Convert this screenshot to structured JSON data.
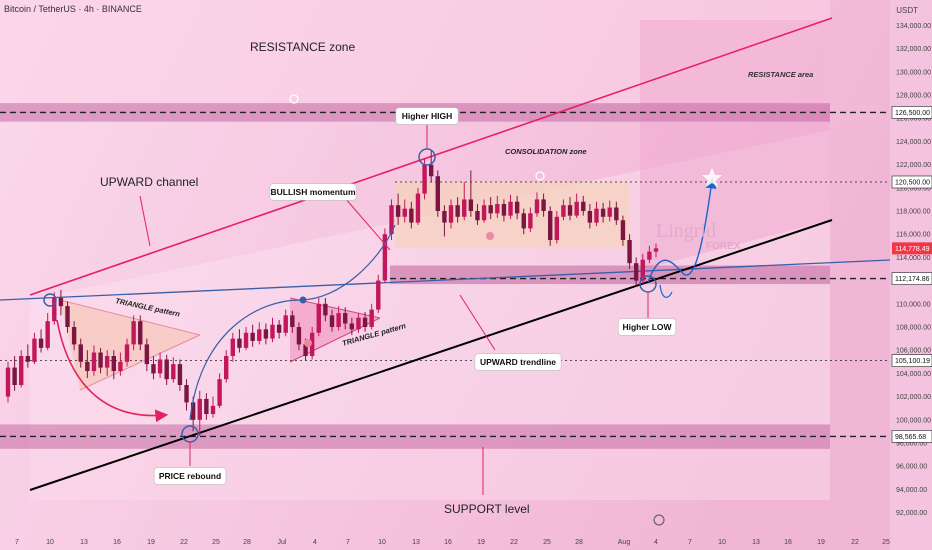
{
  "header": {
    "title": "Bitcoin / TetherUS · 4h · BINANCE",
    "currency": "USDT"
  },
  "chart_data": {
    "type": "candlestick",
    "y_scale": {
      "min": 90500,
      "max": 135500,
      "ticks": [
        92000,
        94000,
        96000,
        98000,
        100000,
        102000,
        104000,
        106000,
        108000,
        110000,
        112000,
        114000,
        116000,
        118000,
        120000,
        122000,
        124000,
        126000,
        128000,
        130000,
        132000,
        134000
      ]
    },
    "y_tick_labels": [
      "92,000.00",
      "94,000.00",
      "96,000.00",
      "98,000.00",
      "100,000.00",
      "102,000.00",
      "104,000.00",
      "106,000.00",
      "108,000.00",
      "110,000.00",
      "112,000.00",
      "114,000.00",
      "116,000.00",
      "118,000.00",
      "120,000.00",
      "122,000.00",
      "124,000.00",
      "126,000.00",
      "128,000.00",
      "130,000.00",
      "132,000.00",
      "134,000.00"
    ],
    "x_labels": [
      "7",
      "10",
      "13",
      "16",
      "19",
      "22",
      "25",
      "28",
      "Jul",
      "4",
      "7",
      "10",
      "13",
      "16",
      "19",
      "22",
      "25",
      "28",
      "Aug",
      "4",
      "7",
      "10",
      "13",
      "16",
      "19",
      "22",
      "25"
    ],
    "price_levels": [
      {
        "value": 126500,
        "label": "126,500.00",
        "color": "#222222",
        "style": "dashed",
        "highlight": false
      },
      {
        "value": 120500,
        "label": "120,500.00",
        "color": "#222222",
        "style": "dotted",
        "highlight": false
      },
      {
        "value": 114778.49,
        "label": "114,778.49",
        "color": "#f23645",
        "style": "none",
        "highlight": true
      },
      {
        "value": 112174.86,
        "label": "112,174.86",
        "color": "#222222",
        "style": "dashed",
        "highlight": false
      },
      {
        "value": 105100.19,
        "label": "105,100.19",
        "color": "#222222",
        "style": "dotted",
        "highlight": false
      },
      {
        "value": 98565.68,
        "label": "98,565.68",
        "color": "#222222",
        "style": "dashed",
        "highlight": false
      }
    ],
    "candles": [
      {
        "o": 102000,
        "c": 104500,
        "h": 105000,
        "l": 101500
      },
      {
        "o": 104500,
        "c": 103000,
        "h": 105500,
        "l": 102500
      },
      {
        "o": 103000,
        "c": 105500,
        "h": 106000,
        "l": 102800
      },
      {
        "o": 105500,
        "c": 105000,
        "h": 106500,
        "l": 104500
      },
      {
        "o": 105000,
        "c": 107000,
        "h": 107500,
        "l": 104800
      },
      {
        "o": 107000,
        "c": 106200,
        "h": 107800,
        "l": 105800
      },
      {
        "o": 106200,
        "c": 108500,
        "h": 109200,
        "l": 106000
      },
      {
        "o": 108500,
        "c": 110500,
        "h": 111000,
        "l": 108200
      },
      {
        "o": 110500,
        "c": 109800,
        "h": 111200,
        "l": 109000
      },
      {
        "o": 109800,
        "c": 108000,
        "h": 110200,
        "l": 107500
      },
      {
        "o": 108000,
        "c": 106500,
        "h": 108500,
        "l": 106000
      },
      {
        "o": 106500,
        "c": 105000,
        "h": 107000,
        "l": 104500
      },
      {
        "o": 105000,
        "c": 104200,
        "h": 106000,
        "l": 103600
      },
      {
        "o": 104200,
        "c": 105800,
        "h": 106400,
        "l": 103800
      },
      {
        "o": 105800,
        "c": 104500,
        "h": 106200,
        "l": 104000
      },
      {
        "o": 104500,
        "c": 105500,
        "h": 106000,
        "l": 103800
      },
      {
        "o": 105500,
        "c": 104200,
        "h": 106000,
        "l": 103500
      },
      {
        "o": 104200,
        "c": 105000,
        "h": 105800,
        "l": 103800
      },
      {
        "o": 105000,
        "c": 106500,
        "h": 107000,
        "l": 104600
      },
      {
        "o": 106500,
        "c": 108500,
        "h": 109000,
        "l": 106000
      },
      {
        "o": 108500,
        "c": 106500,
        "h": 109000,
        "l": 106000
      },
      {
        "o": 106500,
        "c": 104800,
        "h": 107000,
        "l": 104200
      },
      {
        "o": 104800,
        "c": 104000,
        "h": 105500,
        "l": 103500
      },
      {
        "o": 104000,
        "c": 105200,
        "h": 105800,
        "l": 103600
      },
      {
        "o": 105200,
        "c": 103500,
        "h": 105600,
        "l": 103000
      },
      {
        "o": 103500,
        "c": 104800,
        "h": 105400,
        "l": 103200
      },
      {
        "o": 104800,
        "c": 103000,
        "h": 105200,
        "l": 102500
      },
      {
        "o": 103000,
        "c": 101500,
        "h": 103500,
        "l": 100800
      },
      {
        "o": 101500,
        "c": 100000,
        "h": 102000,
        "l": 99000
      },
      {
        "o": 100000,
        "c": 101800,
        "h": 102500,
        "l": 98600
      },
      {
        "o": 101800,
        "c": 100500,
        "h": 102300,
        "l": 100000
      },
      {
        "o": 100500,
        "c": 101200,
        "h": 102000,
        "l": 100200
      },
      {
        "o": 101200,
        "c": 103500,
        "h": 104000,
        "l": 101000
      },
      {
        "o": 103500,
        "c": 105500,
        "h": 106000,
        "l": 103200
      },
      {
        "o": 105500,
        "c": 107000,
        "h": 107500,
        "l": 105000
      },
      {
        "o": 107000,
        "c": 106200,
        "h": 107800,
        "l": 105800
      },
      {
        "o": 106200,
        "c": 107500,
        "h": 108000,
        "l": 106000
      },
      {
        "o": 107500,
        "c": 106800,
        "h": 108200,
        "l": 106300
      },
      {
        "o": 106800,
        "c": 107800,
        "h": 108400,
        "l": 106500
      },
      {
        "o": 107800,
        "c": 107000,
        "h": 108300,
        "l": 106500
      },
      {
        "o": 107000,
        "c": 108200,
        "h": 108800,
        "l": 106700
      },
      {
        "o": 108200,
        "c": 107500,
        "h": 108600,
        "l": 107000
      },
      {
        "o": 107500,
        "c": 109000,
        "h": 109500,
        "l": 107200
      },
      {
        "o": 109000,
        "c": 108000,
        "h": 109400,
        "l": 107500
      },
      {
        "o": 108000,
        "c": 106500,
        "h": 108400,
        "l": 106000
      },
      {
        "o": 106500,
        "c": 105500,
        "h": 107000,
        "l": 105100
      },
      {
        "o": 105500,
        "c": 107500,
        "h": 108000,
        "l": 105200
      },
      {
        "o": 107500,
        "c": 110000,
        "h": 110500,
        "l": 107200
      },
      {
        "o": 110000,
        "c": 109000,
        "h": 110500,
        "l": 108500
      },
      {
        "o": 109000,
        "c": 108000,
        "h": 109500,
        "l": 107600
      },
      {
        "o": 108000,
        "c": 109200,
        "h": 109800,
        "l": 107700
      },
      {
        "o": 109200,
        "c": 108300,
        "h": 109700,
        "l": 107800
      },
      {
        "o": 108300,
        "c": 107800,
        "h": 108800,
        "l": 107300
      },
      {
        "o": 107800,
        "c": 108800,
        "h": 109200,
        "l": 107500
      },
      {
        "o": 108800,
        "c": 108000,
        "h": 109300,
        "l": 107600
      },
      {
        "o": 108000,
        "c": 109500,
        "h": 110000,
        "l": 107800
      },
      {
        "o": 109500,
        "c": 112000,
        "h": 112500,
        "l": 109200
      },
      {
        "o": 112000,
        "c": 116000,
        "h": 116500,
        "l": 111800
      },
      {
        "o": 116000,
        "c": 118500,
        "h": 119000,
        "l": 115500
      },
      {
        "o": 118500,
        "c": 117500,
        "h": 119500,
        "l": 116800
      },
      {
        "o": 117500,
        "c": 118200,
        "h": 119000,
        "l": 117000
      },
      {
        "o": 118200,
        "c": 117000,
        "h": 118800,
        "l": 116500
      },
      {
        "o": 117000,
        "c": 119500,
        "h": 120000,
        "l": 116800
      },
      {
        "o": 119500,
        "c": 122000,
        "h": 122500,
        "l": 119000
      },
      {
        "o": 122000,
        "c": 121000,
        "h": 123200,
        "l": 120500
      },
      {
        "o": 121000,
        "c": 118000,
        "h": 121500,
        "l": 117500
      },
      {
        "o": 118000,
        "c": 117000,
        "h": 118500,
        "l": 115800
      },
      {
        "o": 117000,
        "c": 118500,
        "h": 119000,
        "l": 116500
      },
      {
        "o": 118500,
        "c": 117500,
        "h": 119200,
        "l": 117000
      },
      {
        "o": 117500,
        "c": 119000,
        "h": 120500,
        "l": 117200
      },
      {
        "o": 119000,
        "c": 118000,
        "h": 121500,
        "l": 117500
      },
      {
        "o": 118000,
        "c": 117200,
        "h": 118600,
        "l": 116800
      },
      {
        "o": 117200,
        "c": 118500,
        "h": 119000,
        "l": 117000
      },
      {
        "o": 118500,
        "c": 117800,
        "h": 119200,
        "l": 117300
      },
      {
        "o": 117800,
        "c": 118600,
        "h": 119300,
        "l": 117400
      },
      {
        "o": 118600,
        "c": 117600,
        "h": 119000,
        "l": 117100
      },
      {
        "o": 117600,
        "c": 118800,
        "h": 119400,
        "l": 117300
      },
      {
        "o": 118800,
        "c": 117800,
        "h": 119300,
        "l": 117300
      },
      {
        "o": 117800,
        "c": 116500,
        "h": 118200,
        "l": 116000
      },
      {
        "o": 116500,
        "c": 117800,
        "h": 118300,
        "l": 116200
      },
      {
        "o": 117800,
        "c": 119000,
        "h": 119600,
        "l": 117500
      },
      {
        "o": 119000,
        "c": 118000,
        "h": 119500,
        "l": 117500
      },
      {
        "o": 118000,
        "c": 115500,
        "h": 118400,
        "l": 115000
      },
      {
        "o": 115500,
        "c": 117500,
        "h": 118000,
        "l": 115200
      },
      {
        "o": 117500,
        "c": 118500,
        "h": 119000,
        "l": 117200
      },
      {
        "o": 118500,
        "c": 117600,
        "h": 119200,
        "l": 117200
      },
      {
        "o": 117600,
        "c": 118800,
        "h": 119500,
        "l": 117400
      },
      {
        "o": 118800,
        "c": 118000,
        "h": 119300,
        "l": 117600
      },
      {
        "o": 118000,
        "c": 117000,
        "h": 118600,
        "l": 116500
      },
      {
        "o": 117000,
        "c": 118200,
        "h": 118800,
        "l": 116700
      },
      {
        "o": 118200,
        "c": 117500,
        "h": 118700,
        "l": 117000
      },
      {
        "o": 117500,
        "c": 118300,
        "h": 118900,
        "l": 117100
      },
      {
        "o": 118300,
        "c": 117200,
        "h": 118800,
        "l": 116800
      },
      {
        "o": 117200,
        "c": 115500,
        "h": 117600,
        "l": 115000
      },
      {
        "o": 115500,
        "c": 113500,
        "h": 116000,
        "l": 113000
      },
      {
        "o": 113500,
        "c": 112000,
        "h": 114000,
        "l": 111500
      },
      {
        "o": 112000,
        "c": 113800,
        "h": 114300,
        "l": 111700
      },
      {
        "o": 113800,
        "c": 114500,
        "h": 115000,
        "l": 113500
      },
      {
        "o": 114500,
        "c": 114778,
        "h": 115200,
        "l": 114000
      }
    ],
    "annotations": [
      "RESISTANCE zone",
      "RESISTANCE area",
      "Higher HIGH",
      "CONSOLIDATION zone",
      "UPWARD channel",
      "BULLISH momentum",
      "TRIANGLE pattern",
      "TRIANGLE pattern",
      "UPWARD trendline",
      "Higher LOW",
      "PRICE rebound",
      "SUPPORT level"
    ],
    "watermark": {
      "line1": "Lingrid",
      "line2": "FOREX"
    },
    "colors": {
      "background": "#f7c9e3",
      "bull": "#c2185b",
      "bear": "#7b1541",
      "channel_top": "#e91e63",
      "trendline": "#000000",
      "horizontal_trend": "#3a5ea8",
      "zone_band": "#c46aa3",
      "consolidation": "#f6d2c0",
      "triangle_fill": "#f3a3c9",
      "projection": "#1e63c8",
      "circle": "#3a5ea8"
    }
  }
}
